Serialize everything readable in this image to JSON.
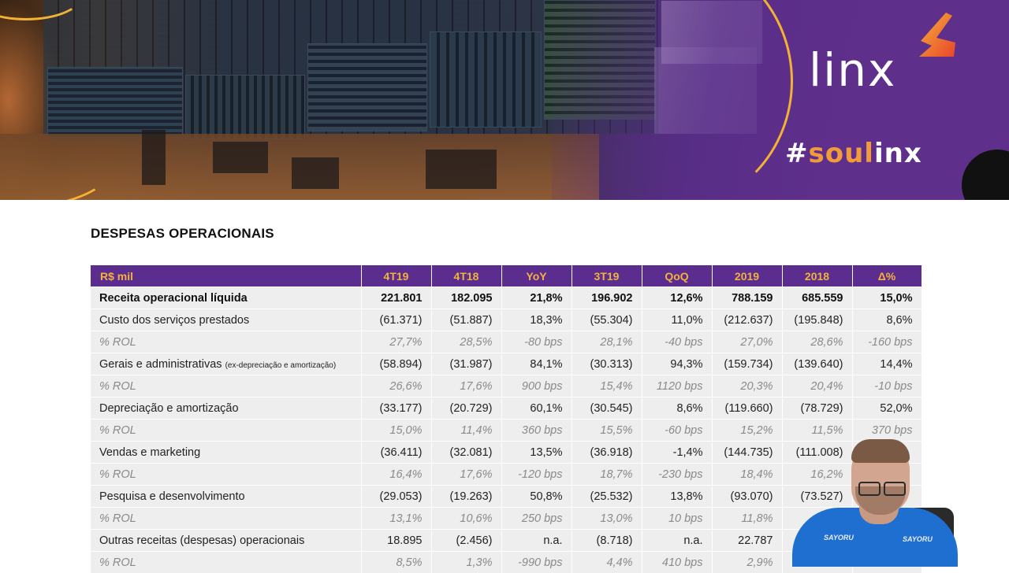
{
  "banner": {
    "logo_text": "linx",
    "hashtag_prefix": "#",
    "hashtag_accent": "soul",
    "hashtag_suffix": "inx",
    "colors": {
      "purple": "#5b2d8e",
      "accent_orange": "#f29b3a",
      "accent_yellow": "#f2b233"
    }
  },
  "document": {
    "title": "DESPESAS OPERACIONAIS",
    "table": {
      "header": [
        "R$ mil",
        "4T19",
        "4T18",
        "YoY",
        "3T19",
        "QoQ",
        "2019",
        "2018",
        "Δ%"
      ],
      "rows": [
        {
          "label": "Receita operacional líquida",
          "note": "",
          "values": [
            "221.801",
            "182.095",
            "21,8%",
            "196.902",
            "12,6%",
            "788.159",
            "685.559",
            "15,0%"
          ]
        },
        {
          "label": "Custo dos serviços prestados",
          "note": "",
          "values": [
            "(61.371)",
            "(51.887)",
            "18,3%",
            "(55.304)",
            "11,0%",
            "(212.637)",
            "(195.848)",
            "8,6%"
          ]
        },
        {
          "label": "% ROL",
          "note": "",
          "values": [
            "27,7%",
            "28,5%",
            "-80 bps",
            "28,1%",
            "-40 bps",
            "27,0%",
            "28,6%",
            "-160 bps"
          ]
        },
        {
          "label": "Gerais e administrativas",
          "note": "(ex-depreciação e amortização)",
          "values": [
            "(58.894)",
            "(31.987)",
            "84,1%",
            "(30.313)",
            "94,3%",
            "(159.734)",
            "(139.640)",
            "14,4%"
          ]
        },
        {
          "label": "% ROL",
          "note": "",
          "values": [
            "26,6%",
            "17,6%",
            "900 bps",
            "15,4%",
            "1120 bps",
            "20,3%",
            "20,4%",
            "-10 bps"
          ]
        },
        {
          "label": "Depreciação e amortização",
          "note": "",
          "values": [
            "(33.177)",
            "(20.729)",
            "60,1%",
            "(30.545)",
            "8,6%",
            "(119.660)",
            "(78.729)",
            "52,0%"
          ]
        },
        {
          "label": "% ROL",
          "note": "",
          "values": [
            "15,0%",
            "11,4%",
            "360 bps",
            "15,5%",
            "-60 bps",
            "15,2%",
            "11,5%",
            "370 bps"
          ]
        },
        {
          "label": "Vendas e marketing",
          "note": "",
          "values": [
            "(36.411)",
            "(32.081)",
            "13,5%",
            "(36.918)",
            "-1,4%",
            "(144.735)",
            "(111.008)",
            ""
          ]
        },
        {
          "label": "% ROL",
          "note": "",
          "values": [
            "16,4%",
            "17,6%",
            "-120 bps",
            "18,7%",
            "-230 bps",
            "18,4%",
            "16,2%",
            ""
          ]
        },
        {
          "label": "Pesquisa e desenvolvimento",
          "note": "",
          "values": [
            "(29.053)",
            "(19.263)",
            "50,8%",
            "(25.532)",
            "13,8%",
            "(93.070)",
            "(73.527)",
            ""
          ]
        },
        {
          "label": "% ROL",
          "note": "",
          "values": [
            "13,1%",
            "10,6%",
            "250 bps",
            "13,0%",
            "10 bps",
            "11,8%",
            "",
            ""
          ]
        },
        {
          "label": "Outras receitas (despesas) operacionais",
          "note": "",
          "values": [
            "18.895",
            "(2.456)",
            "n.a.",
            "(8.718)",
            "n.a.",
            "22.787",
            "",
            ""
          ]
        },
        {
          "label": "% ROL",
          "note": "",
          "values": [
            "8,5%",
            "1,3%",
            "-990 bps",
            "4,4%",
            "410 bps",
            "2,9%",
            "",
            ""
          ]
        }
      ]
    }
  },
  "webcam": {
    "shirt_logo": "SAYORU"
  }
}
